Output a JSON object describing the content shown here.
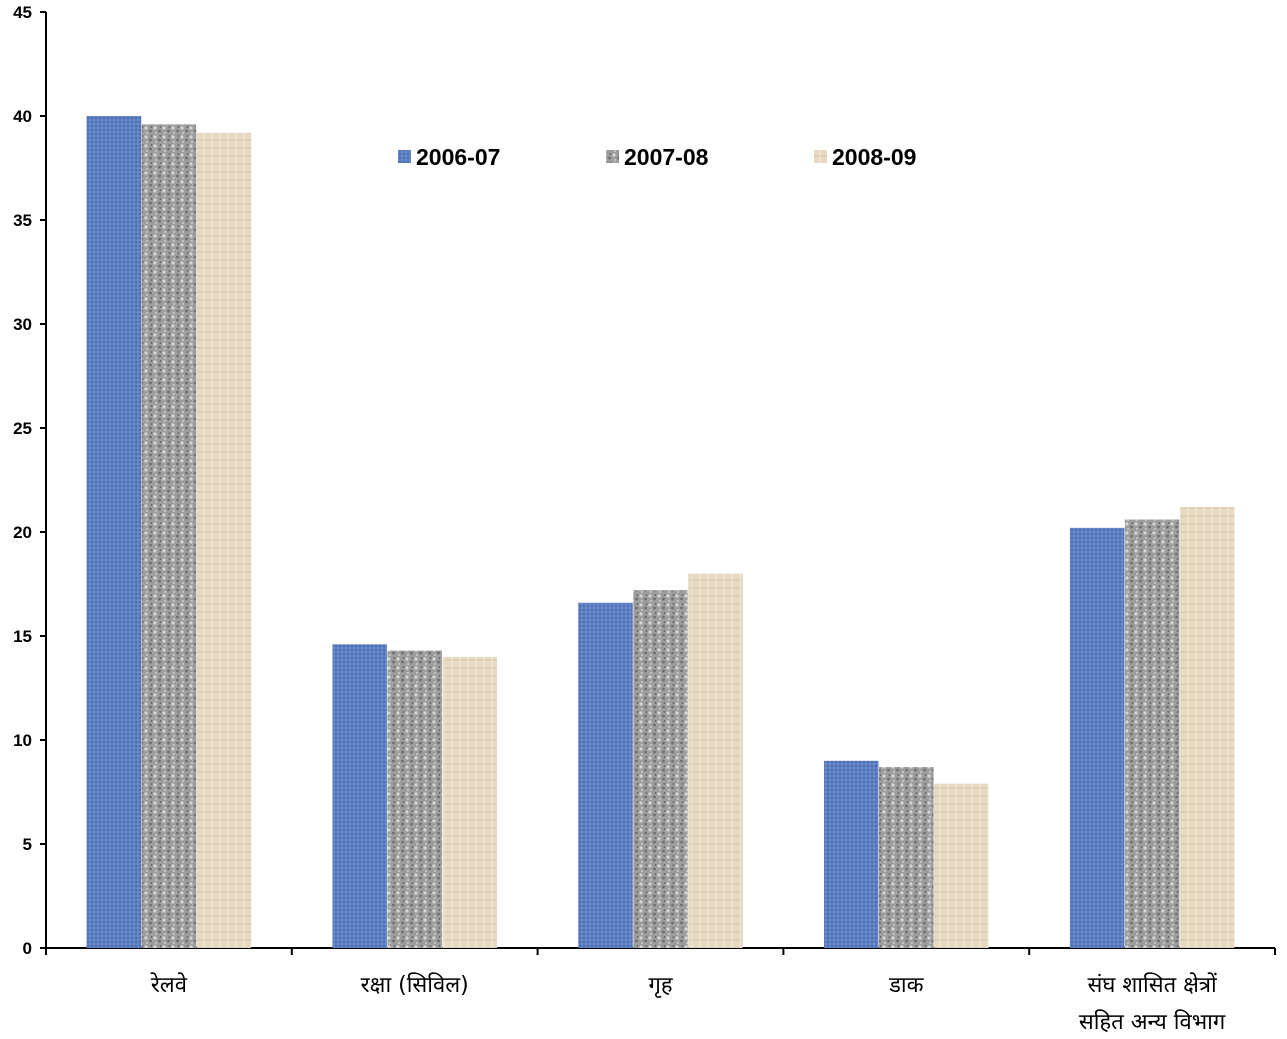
{
  "chart_data": {
    "type": "bar",
    "categories": [
      [
        "रेलवे"
      ],
      [
        "रक्षा (सिविल)"
      ],
      [
        "गृह"
      ],
      [
        "डाक"
      ],
      [
        "संघ शासित क्षेत्रों",
        "सहित अन्य विभाग"
      ]
    ],
    "series": [
      {
        "name": "2006-07",
        "color": "#5b7fc4",
        "values": [
          40.0,
          14.6,
          16.6,
          9.0,
          20.2
        ]
      },
      {
        "name": "2007-08",
        "color": "#9a9a9a",
        "values": [
          39.6,
          14.3,
          17.2,
          8.7,
          20.6
        ]
      },
      {
        "name": "2008-09",
        "color": "#e3d6bc",
        "values": [
          39.2,
          14.0,
          18.0,
          7.9,
          21.2
        ]
      }
    ],
    "ylim": [
      0,
      45
    ],
    "yticks": [
      0,
      5,
      10,
      15,
      20,
      25,
      30,
      35,
      40,
      45
    ],
    "grid": false,
    "legend": "top-center",
    "title": "",
    "xlabel": "",
    "ylabel": ""
  }
}
